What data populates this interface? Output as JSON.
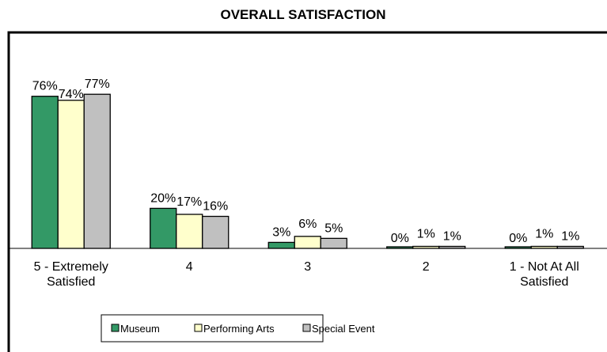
{
  "chart_data": {
    "type": "bar",
    "title": "OVERALL SATISFACTION",
    "categories": [
      "5 - Extremely Satisfied",
      "4",
      "3",
      "2",
      "1 - Not At All Satisfied"
    ],
    "series": [
      {
        "name": "Museum",
        "color": "#339966",
        "values": [
          76,
          20,
          3,
          0,
          0
        ],
        "value_labels": [
          "76%",
          "20%",
          "3%",
          "0%",
          "0%"
        ]
      },
      {
        "name": "Performing Arts",
        "color": "#ffffcc",
        "values": [
          74,
          17,
          6,
          1,
          1
        ],
        "value_labels": [
          "74%",
          "17%",
          "6%",
          "1%",
          "1%"
        ]
      },
      {
        "name": "Special Event",
        "color": "#c0c0c0",
        "values": [
          77,
          16,
          5,
          1,
          1
        ],
        "value_labels": [
          "77%",
          "16%",
          "5%",
          "1%",
          "1%"
        ]
      }
    ],
    "ylim": [
      0,
      100
    ]
  }
}
